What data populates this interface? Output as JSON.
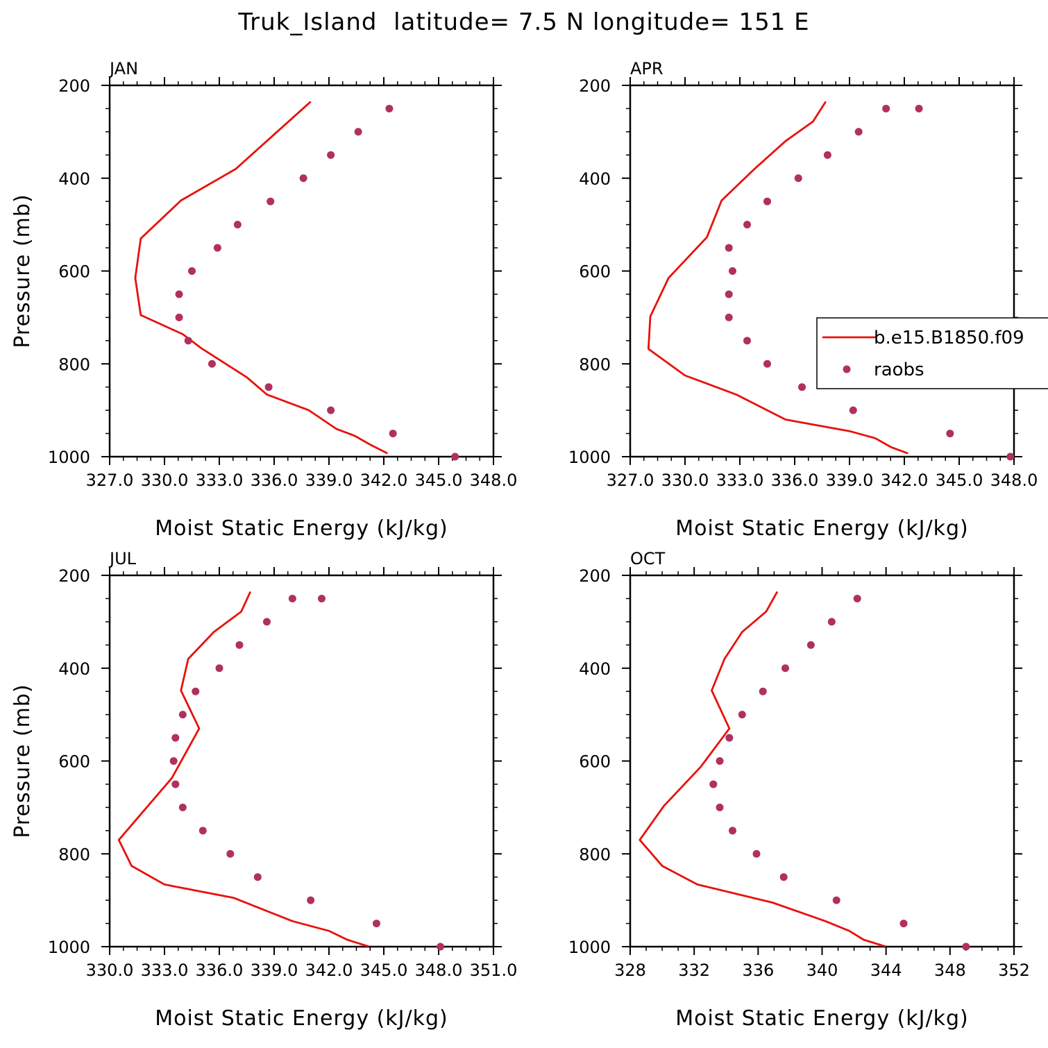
{
  "figure": {
    "title": "Truk_Island  latitude= 7.5 N longitude= 151 E"
  },
  "chart_data": [
    {
      "type": "line",
      "title": "JAN",
      "xlabel": "Moist Static Energy (kJ/kg)",
      "ylabel": "Pressure (mb)",
      "xlim": [
        327,
        348
      ],
      "ylim": [
        200,
        1000
      ],
      "x_tick_labels": [
        "327.0",
        "330.0",
        "333.0",
        "336.0",
        "339.0",
        "342.0",
        "345.0",
        "348.0"
      ],
      "y_tick_labels": [
        "200",
        "400",
        "600",
        "800",
        "1000"
      ],
      "series": [
        {
          "name": "b.e15.B1850.f09",
          "kind": "line",
          "color": "#e8110b",
          "x": [
            342.2,
            341.3,
            340.4,
            339.4,
            337.9,
            335.6,
            334.5,
            332.0,
            331.0,
            328.7,
            328.4,
            328.7,
            330.9,
            333.9,
            338.0
          ],
          "y": [
            993,
            975,
            955,
            940,
            900,
            866,
            829,
            766,
            736,
            695,
            615,
            530,
            448,
            380,
            235
          ]
        },
        {
          "name": "raobs",
          "kind": "points",
          "color": "#b03060",
          "x": [
            345.9,
            342.5,
            339.1,
            335.7,
            332.6,
            331.3,
            330.8,
            330.8,
            331.5,
            332.9,
            334.0,
            335.8,
            337.6,
            339.1,
            340.6,
            342.3
          ],
          "y": [
            1000,
            950,
            900,
            850,
            800,
            750,
            700,
            650,
            600,
            550,
            500,
            450,
            400,
            350,
            300,
            250
          ]
        }
      ]
    },
    {
      "type": "line",
      "title": "APR",
      "xlabel": "Moist Static Energy (kJ/kg)",
      "ylabel": "",
      "xlim": [
        327,
        348
      ],
      "ylim": [
        200,
        1000
      ],
      "x_tick_labels": [
        "327.0",
        "330.0",
        "333.0",
        "336.0",
        "339.0",
        "342.0",
        "345.0",
        "348.0"
      ],
      "y_tick_labels": [
        "200",
        "400",
        "600",
        "800",
        "1000"
      ],
      "legend": {
        "placement": "right",
        "entries": [
          "b.e15.B1850.f09",
          "raobs"
        ]
      },
      "series": [
        {
          "name": "b.e15.B1850.f09",
          "kind": "line",
          "color": "#e8110b",
          "x": [
            342.2,
            341.3,
            340.4,
            339.0,
            335.5,
            332.8,
            330.0,
            328.0,
            328.1,
            329.1,
            331.2,
            332.0,
            333.8,
            335.5,
            337.0,
            337.7
          ],
          "y": [
            993,
            980,
            960,
            945,
            920,
            866,
            825,
            768,
            698,
            615,
            527,
            448,
            380,
            320,
            278,
            235
          ]
        },
        {
          "name": "raobs",
          "kind": "points",
          "color": "#b03060",
          "x": [
            347.8,
            344.5,
            339.2,
            336.4,
            334.5,
            333.4,
            332.4,
            332.4,
            332.6,
            332.4,
            333.4,
            334.5,
            336.2,
            337.8,
            339.5,
            341.0,
            342.8
          ],
          "y": [
            1000,
            950,
            900,
            850,
            800,
            750,
            700,
            650,
            600,
            550,
            500,
            450,
            400,
            350,
            300,
            250,
            250
          ]
        }
      ]
    },
    {
      "type": "line",
      "title": "JUL",
      "xlabel": "Moist Static Energy (kJ/kg)",
      "ylabel": "Pressure (mb)",
      "xlim": [
        330,
        351
      ],
      "ylim": [
        200,
        1000
      ],
      "x_tick_labels": [
        "330.0",
        "333.0",
        "336.0",
        "339.0",
        "342.0",
        "345.0",
        "348.0",
        "351.0"
      ],
      "y_tick_labels": [
        "200",
        "400",
        "600",
        "800",
        "1000"
      ],
      "series": [
        {
          "name": "b.e15.B1850.f09",
          "kind": "line",
          "color": "#e8110b",
          "x": [
            344.2,
            343.0,
            342.0,
            340.0,
            336.8,
            333.0,
            331.2,
            330.5,
            333.4,
            334.9,
            333.9,
            334.3,
            335.7,
            337.2,
            337.7
          ],
          "y": [
            1000,
            985,
            966,
            945,
            895,
            866,
            826,
            770,
            637,
            530,
            448,
            380,
            322,
            278,
            235
          ]
        },
        {
          "name": "raobs",
          "kind": "points",
          "color": "#b03060",
          "x": [
            348.1,
            344.6,
            341.0,
            338.1,
            336.6,
            335.1,
            334.0,
            333.6,
            333.5,
            333.6,
            334.0,
            334.7,
            336.0,
            337.1,
            338.6,
            340.0,
            341.6
          ],
          "y": [
            1000,
            950,
            900,
            850,
            800,
            750,
            700,
            650,
            600,
            550,
            500,
            450,
            400,
            350,
            300,
            250,
            250
          ]
        }
      ]
    },
    {
      "type": "line",
      "title": "OCT",
      "xlabel": "Moist Static Energy (kJ/kg)",
      "ylabel": "",
      "xlim": [
        328,
        352
      ],
      "ylim": [
        200,
        1000
      ],
      "x_tick_labels": [
        "328",
        "332",
        "336",
        "340",
        "344",
        "348",
        "352"
      ],
      "y_tick_labels": [
        "200",
        "400",
        "600",
        "800",
        "1000"
      ],
      "series": [
        {
          "name": "b.e15.B1850.f09",
          "kind": "line",
          "color": "#e8110b",
          "x": [
            344.0,
            342.6,
            341.7,
            340.2,
            336.9,
            332.2,
            330.0,
            328.6,
            330.1,
            332.4,
            334.2,
            333.1,
            333.9,
            335.0,
            336.5,
            337.2
          ],
          "y": [
            1000,
            985,
            966,
            945,
            905,
            866,
            826,
            770,
            697,
            613,
            530,
            448,
            380,
            322,
            278,
            235
          ]
        },
        {
          "name": "raobs",
          "kind": "points",
          "color": "#b03060",
          "x": [
            349.0,
            345.1,
            340.9,
            337.6,
            335.9,
            334.4,
            333.6,
            333.2,
            333.6,
            334.2,
            335.0,
            336.3,
            337.7,
            339.3,
            340.6,
            342.2
          ],
          "y": [
            1000,
            950,
            900,
            850,
            800,
            750,
            700,
            650,
            600,
            550,
            500,
            450,
            400,
            350,
            300,
            250
          ]
        }
      ]
    }
  ]
}
